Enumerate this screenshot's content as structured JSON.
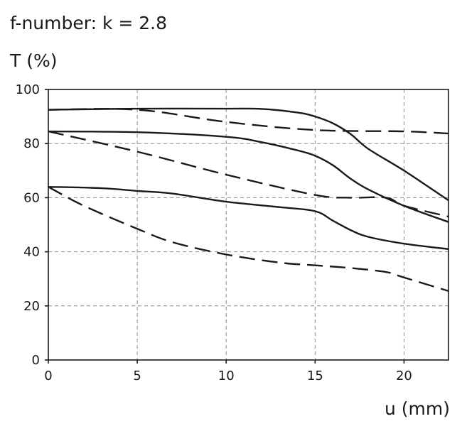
{
  "chart_data": {
    "type": "line",
    "title": "f-number: k = 2.8",
    "ylabel": "T (%)",
    "xlabel": "u (mm)",
    "xlim": [
      0,
      22.5
    ],
    "ylim": [
      0,
      100
    ],
    "xticks": [
      0,
      5,
      10,
      15,
      20
    ],
    "yticks": [
      0,
      20,
      40,
      60,
      80,
      100
    ],
    "grid": true,
    "colors": {
      "line": "#1a1a1a",
      "grid": "#8a8a8a"
    },
    "series": [
      {
        "style": "solid",
        "x": [
          0,
          5,
          10,
          12,
          14,
          15,
          16,
          17,
          18,
          20,
          22.5
        ],
        "y": [
          92.5,
          92.9,
          92.9,
          92.8,
          91.5,
          90,
          87.5,
          83.5,
          78,
          70,
          59
        ]
      },
      {
        "style": "dashed",
        "x": [
          0,
          5,
          10,
          15,
          20,
          22.5
        ],
        "y": [
          92.5,
          92.5,
          88,
          85,
          84.5,
          83.7
        ]
      },
      {
        "style": "solid",
        "x": [
          0,
          5,
          10,
          12,
          14,
          15,
          16,
          17,
          18,
          20,
          22.5
        ],
        "y": [
          84.5,
          84.2,
          82.5,
          80.5,
          77.5,
          75.5,
          72,
          67,
          63,
          57,
          51
        ]
      },
      {
        "style": "dashed",
        "x": [
          0,
          5,
          10,
          15,
          17,
          19,
          20,
          22.5
        ],
        "y": [
          84.5,
          77,
          68.5,
          61,
          60,
          60,
          57,
          53
        ]
      },
      {
        "style": "solid",
        "x": [
          0,
          3,
          5,
          7,
          10,
          13,
          15,
          16,
          17,
          18,
          20,
          22.5
        ],
        "y": [
          64,
          63.5,
          62.5,
          61.5,
          58.5,
          56.5,
          55,
          51.5,
          48,
          45.5,
          43,
          41
        ]
      },
      {
        "style": "dashed",
        "x": [
          0,
          2,
          5,
          7,
          10,
          13,
          15,
          17,
          19,
          20,
          22.5
        ],
        "y": [
          64,
          57,
          48.5,
          43.5,
          39,
          36,
          35,
          34,
          32.5,
          30.5,
          25.5
        ]
      }
    ]
  }
}
